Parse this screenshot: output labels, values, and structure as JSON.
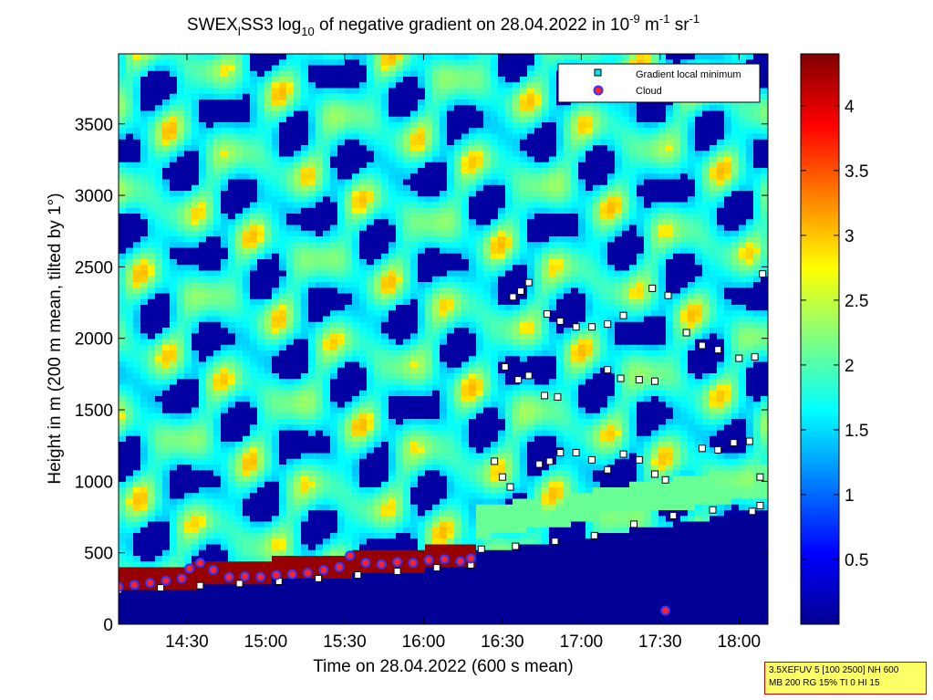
{
  "chart_data": {
    "type": "heatmap",
    "title_parts": {
      "a": "SWEX",
      "a_sub": "l",
      "b": "SS3 log",
      "b_sub": "10",
      "c": " of negative gradient on 28.04.2022 in 10",
      "c_sup": "-9",
      "d": " m",
      "d_sup": "-1",
      "e": " sr",
      "e_sup": "-1"
    },
    "xlabel": "Time on 28.04.2022 (600 s mean)",
    "ylabel": "Height in m (200 m mean, tilted by 1°)",
    "x_ticks": [
      "14:30",
      "15:00",
      "15:30",
      "16:00",
      "16:30",
      "17:00",
      "17:30",
      "18:00"
    ],
    "x_tick_minutes": [
      870,
      900,
      930,
      960,
      990,
      1020,
      1050,
      1080
    ],
    "xlim_minutes": [
      844,
      1091
    ],
    "y_ticks": [
      0,
      500,
      1000,
      1500,
      2000,
      2500,
      3000,
      3500
    ],
    "ylim": [
      0,
      3990
    ],
    "colorbar_ticks": [
      0.5,
      1,
      1.5,
      2,
      2.5,
      3,
      3.5,
      4
    ],
    "colorbar_labels": [
      "0.5",
      "1",
      "1.5",
      "2",
      "2.5",
      "3",
      "3.5",
      "4"
    ],
    "colorbar_range": [
      0,
      4.4
    ],
    "colormap": "jet",
    "grid": false,
    "legend_position": "top-right",
    "legend": [
      {
        "label": "Gradient local minimum",
        "marker": "square",
        "color": "#00e5e5"
      },
      {
        "label": "Cloud",
        "marker": "circle",
        "color": "#ff2222",
        "edge": "#3333ff"
      }
    ],
    "series": [
      {
        "name": "Gradient local minimum",
        "segment": "boundary layer top",
        "x_minutes": [
          844,
          860,
          875,
          890,
          905,
          920,
          935,
          950,
          965,
          978,
          982,
          995,
          1010,
          1025,
          1040,
          1055,
          1070,
          1085,
          1088
        ],
        "y": [
          240,
          255,
          270,
          285,
          300,
          320,
          345,
          370,
          395,
          415,
          525,
          545,
          580,
          620,
          700,
          760,
          800,
          790,
          830
        ]
      },
      {
        "name": "Gradient local minimum",
        "segment": "layer near 2200 m",
        "x_minutes": [
          994,
          997,
          1000,
          1007,
          1012,
          1018,
          1024,
          1030,
          1036,
          1047,
          1053,
          1060,
          1066,
          1072,
          1080,
          1086,
          1089
        ],
        "y": [
          2290,
          2330,
          2390,
          2170,
          2120,
          2080,
          2080,
          2100,
          2160,
          2350,
          2300,
          2040,
          1950,
          1920,
          1860,
          1870,
          2450
        ]
      },
      {
        "name": "Gradient local minimum",
        "segment": "layer near 1700 m",
        "x_minutes": [
          991,
          996,
          1000,
          1006,
          1011,
          1030,
          1035,
          1042,
          1048
        ],
        "y": [
          1800,
          1710,
          1740,
          1600,
          1590,
          1780,
          1720,
          1710,
          1700
        ]
      },
      {
        "name": "Gradient local minimum",
        "segment": "layer near 1100 m",
        "x_minutes": [
          987,
          990,
          993,
          1004,
          1008,
          1012,
          1018,
          1024,
          1030,
          1036,
          1042,
          1048,
          1052,
          1066,
          1072,
          1078,
          1084,
          1088
        ],
        "y": [
          1140,
          1030,
          960,
          1120,
          1140,
          1200,
          1200,
          1150,
          1080,
          1190,
          1150,
          1050,
          1010,
          1230,
          1220,
          1270,
          1280,
          1030
        ]
      },
      {
        "name": "Cloud",
        "x_minutes": [
          844,
          850,
          856,
          862,
          868,
          871,
          875,
          880,
          886,
          892,
          898,
          904,
          910,
          916,
          922,
          928,
          932,
          938,
          944,
          950,
          956,
          962,
          968,
          974,
          978,
          1052
        ],
        "y": [
          260,
          275,
          290,
          305,
          320,
          390,
          430,
          380,
          330,
          335,
          330,
          345,
          350,
          360,
          380,
          400,
          480,
          430,
          420,
          435,
          430,
          450,
          455,
          440,
          460,
          95
        ]
      }
    ]
  },
  "info_box": {
    "line1": "3.5XEFUV 5 [100 2500] NH 600",
    "line2": "MB 200 RG 15% TI 0 HI 15"
  }
}
